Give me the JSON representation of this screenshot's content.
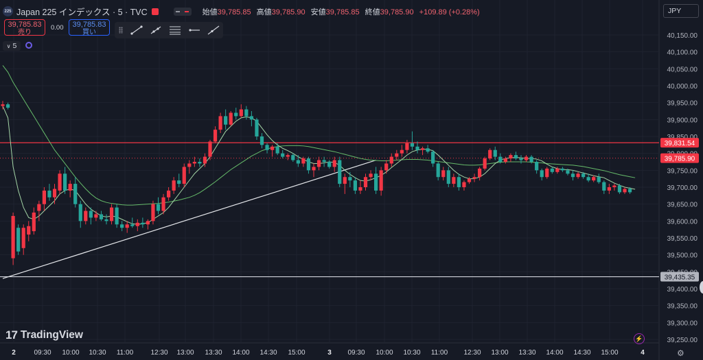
{
  "header": {
    "symbol_badge": "225",
    "title": "Japan 225 インデックス · 5 · TVC",
    "ohlc": {
      "open_label": "始値",
      "open": "39,785.85",
      "high_label": "高値",
      "high": "39,785.90",
      "low_label": "安値",
      "low": "39,785.85",
      "close_label": "終値",
      "close": "39,785.90",
      "change": "+109.89 (+0.28%)"
    }
  },
  "trade": {
    "sell_price": "39,785.83",
    "sell_label": "売り",
    "spread": "0.00",
    "buy_price": "39,785.83",
    "buy_label": "買い"
  },
  "interval_label": "5",
  "currency": "JPY",
  "brand": "TradingView",
  "colors": {
    "background": "#161a25",
    "up": "#f23645",
    "down": "#26a69a",
    "ma_fast": "#a5d6a7",
    "ma_slow": "#66bb6a",
    "resistance": "#f23645",
    "support": "#d1d4dc"
  },
  "price_axis": {
    "ticks": [
      "40,150.00",
      "40,100.00",
      "40,050.00",
      "40,000.00",
      "39,950.00",
      "39,900.00",
      "39,850.00",
      "39,800.00",
      "39,750.00",
      "39,700.00",
      "39,650.00",
      "39,600.00",
      "39,550.00",
      "39,500.00",
      "39,450.00",
      "39,400.00",
      "39,350.00",
      "39,300.00",
      "39,250.00"
    ],
    "markers": [
      {
        "label": "39,831.54",
        "color": "#f23645",
        "value": 39831.54
      },
      {
        "label": "39,785.90",
        "color": "#f23645",
        "value": 39785.9
      },
      {
        "label": "39,435.35",
        "color": "#b2b5be",
        "value": 39435.35
      }
    ]
  },
  "time_axis": [
    {
      "label": "2",
      "major": true
    },
    {
      "label": "09:30"
    },
    {
      "label": "10:00"
    },
    {
      "label": "10:30"
    },
    {
      "label": "11:00"
    },
    {
      "label": "12:30"
    },
    {
      "label": "13:00"
    },
    {
      "label": "13:30"
    },
    {
      "label": "14:00"
    },
    {
      "label": "14:30"
    },
    {
      "label": "15:00"
    },
    {
      "label": "3",
      "major": true
    },
    {
      "label": "09:30"
    },
    {
      "label": "10:00"
    },
    {
      "label": "10:30"
    },
    {
      "label": "11:00"
    },
    {
      "label": "12:30"
    },
    {
      "label": "13:00"
    },
    {
      "label": "13:30"
    },
    {
      "label": "14:00"
    },
    {
      "label": "14:30"
    },
    {
      "label": "15:00"
    },
    {
      "label": "4",
      "major": true
    }
  ],
  "chart_data": {
    "type": "candlestick",
    "y_range": [
      39240,
      40170
    ],
    "candles": [
      {
        "o": 39940,
        "h": 39955,
        "l": 39930,
        "c": 39945
      },
      {
        "o": 39945,
        "h": 39950,
        "l": 39930,
        "c": 39935
      },
      {
        "o": 39490,
        "h": 39625,
        "l": 39470,
        "c": 39615
      },
      {
        "o": 39580,
        "h": 39590,
        "l": 39500,
        "c": 39510
      },
      {
        "o": 39520,
        "h": 39590,
        "l": 39500,
        "c": 39580
      },
      {
        "o": 39560,
        "h": 39600,
        "l": 39540,
        "c": 39585
      },
      {
        "o": 39570,
        "h": 39640,
        "l": 39560,
        "c": 39625
      },
      {
        "o": 39630,
        "h": 39660,
        "l": 39600,
        "c": 39650
      },
      {
        "o": 39650,
        "h": 39700,
        "l": 39630,
        "c": 39690
      },
      {
        "o": 39690,
        "h": 39710,
        "l": 39660,
        "c": 39670
      },
      {
        "o": 39670,
        "h": 39710,
        "l": 39650,
        "c": 39695
      },
      {
        "o": 39690,
        "h": 39750,
        "l": 39680,
        "c": 39740
      },
      {
        "o": 39740,
        "h": 39760,
        "l": 39680,
        "c": 39690
      },
      {
        "o": 39690,
        "h": 39720,
        "l": 39670,
        "c": 39710
      },
      {
        "o": 39710,
        "h": 39730,
        "l": 39640,
        "c": 39650
      },
      {
        "o": 39650,
        "h": 39660,
        "l": 39580,
        "c": 39600
      },
      {
        "o": 39600,
        "h": 39640,
        "l": 39590,
        "c": 39630
      },
      {
        "o": 39630,
        "h": 39640,
        "l": 39590,
        "c": 39610
      },
      {
        "o": 39610,
        "h": 39630,
        "l": 39600,
        "c": 39620
      },
      {
        "o": 39620,
        "h": 39630,
        "l": 39600,
        "c": 39605
      },
      {
        "o": 39605,
        "h": 39620,
        "l": 39590,
        "c": 39600
      },
      {
        "o": 39600,
        "h": 39650,
        "l": 39590,
        "c": 39640
      },
      {
        "o": 39640,
        "h": 39650,
        "l": 39580,
        "c": 39590
      },
      {
        "o": 39590,
        "h": 39600,
        "l": 39570,
        "c": 39580
      },
      {
        "o": 39580,
        "h": 39600,
        "l": 39565,
        "c": 39590
      },
      {
        "o": 39590,
        "h": 39610,
        "l": 39580,
        "c": 39585
      },
      {
        "o": 39585,
        "h": 39605,
        "l": 39570,
        "c": 39595
      },
      {
        "o": 39595,
        "h": 39610,
        "l": 39580,
        "c": 39590
      },
      {
        "o": 39590,
        "h": 39605,
        "l": 39575,
        "c": 39600
      },
      {
        "o": 39600,
        "h": 39660,
        "l": 39590,
        "c": 39650
      },
      {
        "o": 39650,
        "h": 39670,
        "l": 39620,
        "c": 39630
      },
      {
        "o": 39630,
        "h": 39680,
        "l": 39620,
        "c": 39670
      },
      {
        "o": 39670,
        "h": 39700,
        "l": 39660,
        "c": 39690
      },
      {
        "o": 39690,
        "h": 39730,
        "l": 39680,
        "c": 39720
      },
      {
        "o": 39720,
        "h": 39740,
        "l": 39700,
        "c": 39710
      },
      {
        "o": 39710,
        "h": 39770,
        "l": 39700,
        "c": 39760
      },
      {
        "o": 39760,
        "h": 39780,
        "l": 39740,
        "c": 39770
      },
      {
        "o": 39770,
        "h": 39790,
        "l": 39760,
        "c": 39775
      },
      {
        "o": 39775,
        "h": 39785,
        "l": 39760,
        "c": 39770
      },
      {
        "o": 39770,
        "h": 39800,
        "l": 39760,
        "c": 39790
      },
      {
        "o": 39790,
        "h": 39840,
        "l": 39780,
        "c": 39835
      },
      {
        "o": 39835,
        "h": 39880,
        "l": 39830,
        "c": 39870
      },
      {
        "o": 39870,
        "h": 39920,
        "l": 39860,
        "c": 39910
      },
      {
        "o": 39910,
        "h": 39930,
        "l": 39870,
        "c": 39885
      },
      {
        "o": 39885,
        "h": 39925,
        "l": 39880,
        "c": 39920
      },
      {
        "o": 39920,
        "h": 39935,
        "l": 39900,
        "c": 39910
      },
      {
        "o": 39910,
        "h": 39945,
        "l": 39905,
        "c": 39930
      },
      {
        "o": 39930,
        "h": 39940,
        "l": 39900,
        "c": 39910
      },
      {
        "o": 39910,
        "h": 39925,
        "l": 39880,
        "c": 39900
      },
      {
        "o": 39900,
        "h": 39905,
        "l": 39840,
        "c": 39850
      },
      {
        "o": 39850,
        "h": 39860,
        "l": 39815,
        "c": 39825
      },
      {
        "o": 39825,
        "h": 39830,
        "l": 39800,
        "c": 39810
      },
      {
        "o": 39810,
        "h": 39825,
        "l": 39790,
        "c": 39820
      },
      {
        "o": 39820,
        "h": 39830,
        "l": 39795,
        "c": 39800
      },
      {
        "o": 39800,
        "h": 39810,
        "l": 39785,
        "c": 39790
      },
      {
        "o": 39790,
        "h": 39800,
        "l": 39780,
        "c": 39795
      },
      {
        "o": 39795,
        "h": 39800,
        "l": 39775,
        "c": 39780
      },
      {
        "o": 39780,
        "h": 39795,
        "l": 39760,
        "c": 39770
      },
      {
        "o": 39770,
        "h": 39790,
        "l": 39760,
        "c": 39785
      },
      {
        "o": 39785,
        "h": 39790,
        "l": 39740,
        "c": 39750
      },
      {
        "o": 39750,
        "h": 39770,
        "l": 39730,
        "c": 39760
      },
      {
        "o": 39760,
        "h": 39790,
        "l": 39750,
        "c": 39780
      },
      {
        "o": 39780,
        "h": 39790,
        "l": 39760,
        "c": 39775
      },
      {
        "o": 39775,
        "h": 39780,
        "l": 39755,
        "c": 39760
      },
      {
        "o": 39760,
        "h": 39790,
        "l": 39745,
        "c": 39780
      },
      {
        "o": 39780,
        "h": 39790,
        "l": 39700,
        "c": 39710
      },
      {
        "o": 39710,
        "h": 39740,
        "l": 39680,
        "c": 39730
      },
      {
        "o": 39730,
        "h": 39745,
        "l": 39700,
        "c": 39720
      },
      {
        "o": 39720,
        "h": 39730,
        "l": 39680,
        "c": 39690
      },
      {
        "o": 39690,
        "h": 39720,
        "l": 39680,
        "c": 39700
      },
      {
        "o": 39700,
        "h": 39740,
        "l": 39690,
        "c": 39730
      },
      {
        "o": 39730,
        "h": 39750,
        "l": 39720,
        "c": 39740
      },
      {
        "o": 39740,
        "h": 39760,
        "l": 39680,
        "c": 39690
      },
      {
        "o": 39690,
        "h": 39760,
        "l": 39675,
        "c": 39750
      },
      {
        "o": 39750,
        "h": 39780,
        "l": 39740,
        "c": 39770
      },
      {
        "o": 39770,
        "h": 39800,
        "l": 39760,
        "c": 39790
      },
      {
        "o": 39790,
        "h": 39810,
        "l": 39780,
        "c": 39800
      },
      {
        "o": 39800,
        "h": 39825,
        "l": 39790,
        "c": 39810
      },
      {
        "o": 39810,
        "h": 39840,
        "l": 39800,
        "c": 39830
      },
      {
        "o": 39830,
        "h": 39865,
        "l": 39810,
        "c": 39820
      },
      {
        "o": 39820,
        "h": 39835,
        "l": 39800,
        "c": 39810
      },
      {
        "o": 39810,
        "h": 39820,
        "l": 39795,
        "c": 39815
      },
      {
        "o": 39815,
        "h": 39825,
        "l": 39800,
        "c": 39805
      },
      {
        "o": 39805,
        "h": 39810,
        "l": 39760,
        "c": 39770
      },
      {
        "o": 39770,
        "h": 39775,
        "l": 39720,
        "c": 39730
      },
      {
        "o": 39730,
        "h": 39760,
        "l": 39720,
        "c": 39750
      },
      {
        "o": 39750,
        "h": 39760,
        "l": 39700,
        "c": 39710
      },
      {
        "o": 39710,
        "h": 39740,
        "l": 39700,
        "c": 39730
      },
      {
        "o": 39730,
        "h": 39740,
        "l": 39690,
        "c": 39700
      },
      {
        "o": 39700,
        "h": 39720,
        "l": 39690,
        "c": 39715
      },
      {
        "o": 39715,
        "h": 39730,
        "l": 39710,
        "c": 39725
      },
      {
        "o": 39725,
        "h": 39740,
        "l": 39715,
        "c": 39730
      },
      {
        "o": 39730,
        "h": 39760,
        "l": 39720,
        "c": 39755
      },
      {
        "o": 39755,
        "h": 39790,
        "l": 39750,
        "c": 39785
      },
      {
        "o": 39785,
        "h": 39815,
        "l": 39780,
        "c": 39810
      },
      {
        "o": 39810,
        "h": 39820,
        "l": 39780,
        "c": 39790
      },
      {
        "o": 39790,
        "h": 39800,
        "l": 39770,
        "c": 39775
      },
      {
        "o": 39775,
        "h": 39790,
        "l": 39770,
        "c": 39785
      },
      {
        "o": 39785,
        "h": 39800,
        "l": 39775,
        "c": 39795
      },
      {
        "o": 39795,
        "h": 39805,
        "l": 39780,
        "c": 39785
      },
      {
        "o": 39785,
        "h": 39795,
        "l": 39770,
        "c": 39780
      },
      {
        "o": 39780,
        "h": 39795,
        "l": 39775,
        "c": 39790
      },
      {
        "o": 39790,
        "h": 39795,
        "l": 39770,
        "c": 39775
      },
      {
        "o": 39775,
        "h": 39780,
        "l": 39740,
        "c": 39750
      },
      {
        "o": 39750,
        "h": 39755,
        "l": 39720,
        "c": 39730
      },
      {
        "o": 39730,
        "h": 39760,
        "l": 39725,
        "c": 39755
      },
      {
        "o": 39755,
        "h": 39760,
        "l": 39740,
        "c": 39745
      },
      {
        "o": 39745,
        "h": 39760,
        "l": 39740,
        "c": 39755
      },
      {
        "o": 39755,
        "h": 39760,
        "l": 39745,
        "c": 39750
      },
      {
        "o": 39750,
        "h": 39755,
        "l": 39735,
        "c": 39740
      },
      {
        "o": 39740,
        "h": 39750,
        "l": 39720,
        "c": 39730
      },
      {
        "o": 39730,
        "h": 39745,
        "l": 39725,
        "c": 39740
      },
      {
        "o": 39740,
        "h": 39745,
        "l": 39725,
        "c": 39730
      },
      {
        "o": 39730,
        "h": 39740,
        "l": 39715,
        "c": 39720
      },
      {
        "o": 39720,
        "h": 39735,
        "l": 39715,
        "c": 39730
      },
      {
        "o": 39730,
        "h": 39740,
        "l": 39710,
        "c": 39715
      },
      {
        "o": 39715,
        "h": 39720,
        "l": 39680,
        "c": 39690
      },
      {
        "o": 39690,
        "h": 39710,
        "l": 39680,
        "c": 39700
      },
      {
        "o": 39700,
        "h": 39710,
        "l": 39690,
        "c": 39705
      },
      {
        "o": 39705,
        "h": 39710,
        "l": 39680,
        "c": 39685
      },
      {
        "o": 39685,
        "h": 39700,
        "l": 39680,
        "c": 39695
      },
      {
        "o": 39695,
        "h": 39700,
        "l": 39680,
        "c": 39685
      }
    ],
    "ma_fast": [
      39940,
      39905,
      39760,
      39690,
      39640,
      39610,
      39605,
      39615,
      39630,
      39645,
      39660,
      39680,
      39690,
      39695,
      39690,
      39670,
      39650,
      39635,
      39625,
      39615,
      39612,
      39615,
      39612,
      39605,
      39598,
      39592,
      39590,
      39592,
      39595,
      39605,
      39615,
      39625,
      39640,
      39660,
      39680,
      39700,
      39720,
      39740,
      39755,
      39770,
      39790,
      39815,
      39840,
      39865,
      39880,
      39895,
      39905,
      39908,
      39905,
      39895,
      39875,
      39855,
      39838,
      39825,
      39815,
      39808,
      39800,
      39790,
      39782,
      39775,
      39770,
      39770,
      39772,
      39775,
      39773,
      39765,
      39750,
      39738,
      39728,
      39720,
      39718,
      39722,
      39728,
      39735,
      39745,
      39758,
      39770,
      39782,
      39795,
      39805,
      39810,
      39812,
      39812,
      39808,
      39795,
      39780,
      39765,
      39750,
      39738,
      39730,
      39725,
      39725,
      39730,
      39740,
      39755,
      39770,
      39780,
      39785,
      39787,
      39788,
      39787,
      39785,
      39785,
      39783,
      39778,
      39768,
      39760,
      39755,
      39752,
      39752,
      39750,
      39746,
      39742,
      39738,
      39734,
      39731,
      39728,
      39720,
      39712,
      39706,
      39700,
      39697,
      39694
    ],
    "ma_slow": [
      40060,
      40040,
      40010,
      39985,
      39960,
      39935,
      39910,
      39885,
      39860,
      39835,
      39810,
      39790,
      39770,
      39750,
      39730,
      39712,
      39695,
      39680,
      39668,
      39660,
      39655,
      39652,
      39650,
      39648,
      39647,
      39647,
      39648,
      39649,
      39650,
      39651,
      39652,
      39654,
      39656,
      39659,
      39662,
      39666,
      39670,
      39676,
      39684,
      39694,
      39705,
      39716,
      39728,
      39740,
      39752,
      39762,
      39772,
      39782,
      39792,
      39800,
      39808,
      39813,
      39817,
      39820,
      39822,
      39823,
      39823,
      39823,
      39822,
      39820,
      39817,
      39814,
      39811,
      39808,
      39805,
      39801,
      39797,
      39793,
      39789,
      39785,
      39782,
      39780,
      39779,
      39778,
      39778,
      39779,
      39780,
      39781,
      39782,
      39782,
      39782,
      39781,
      39780,
      39778,
      39776,
      39774,
      39772,
      39770,
      39768,
      39766,
      39765,
      39765,
      39766,
      39768,
      39770,
      39772,
      39774,
      39775,
      39775,
      39775,
      39775,
      39775,
      39774,
      39773,
      39772,
      39770,
      39769,
      39768,
      39767,
      39766,
      39765,
      39763,
      39761,
      39758,
      39755,
      39752,
      39749,
      39745,
      39741,
      39737,
      39734,
      39731,
      39728
    ],
    "trendline": {
      "from_index": 0,
      "from_value": 39430,
      "to_index": 72,
      "to_value": 39780
    },
    "resistance": 39831.54,
    "support": 39435.35
  }
}
